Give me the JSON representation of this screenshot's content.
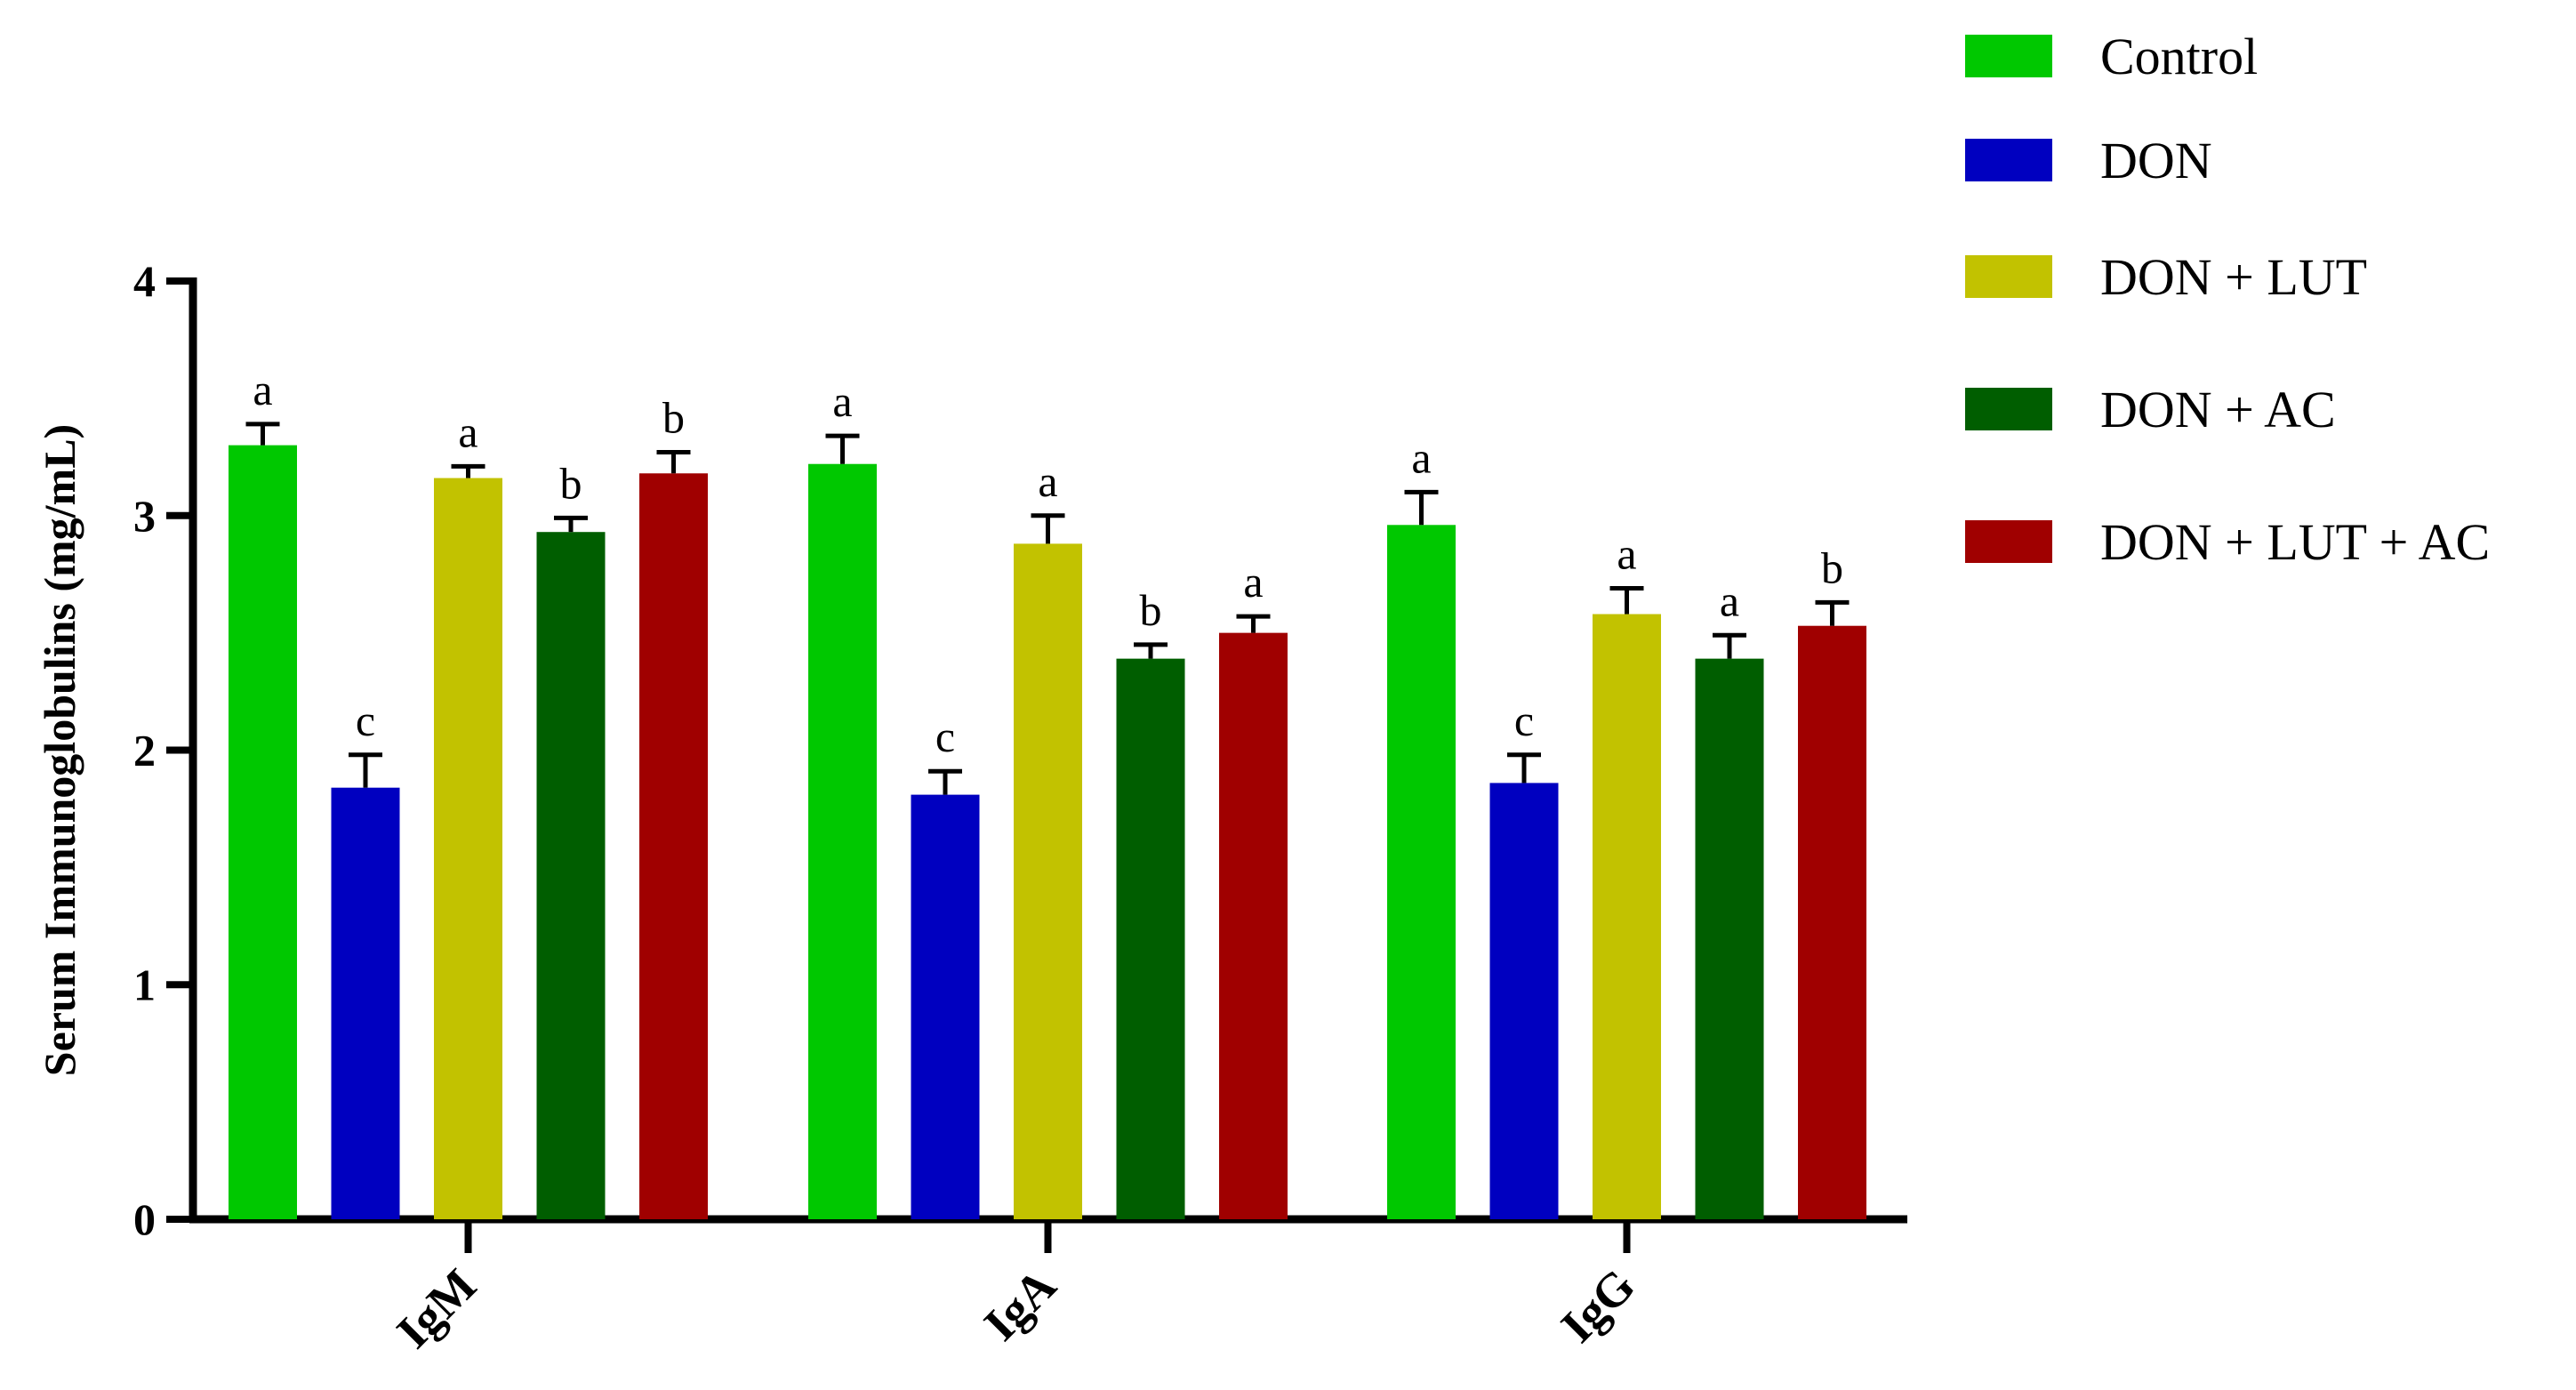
{
  "chart_data": {
    "type": "bar",
    "ylabel": "Serum Immunoglobulins (mg/mL)",
    "xlabel": "",
    "ylim": [
      0,
      4
    ],
    "yticks": [
      0,
      1,
      2,
      3,
      4
    ],
    "grid": false,
    "legend_position": "top-right",
    "categories": [
      "IgM",
      "IgA",
      "IgG"
    ],
    "series": [
      {
        "name": "Control",
        "color": "#00C800",
        "values": [
          3.3,
          3.22,
          2.96
        ],
        "errors": [
          0.09,
          0.12,
          0.14
        ],
        "labels": [
          "a",
          "a",
          "a"
        ]
      },
      {
        "name": "DON",
        "color": "#0000C0",
        "values": [
          1.84,
          1.81,
          1.86
        ],
        "errors": [
          0.14,
          0.1,
          0.12
        ],
        "labels": [
          "c",
          "c",
          "c"
        ]
      },
      {
        "name": "DON + LUT",
        "color": "#C2C200",
        "values": [
          3.16,
          2.88,
          2.58
        ],
        "errors": [
          0.05,
          0.12,
          0.11
        ],
        "labels": [
          "a",
          "a",
          "a"
        ]
      },
      {
        "name": "DON + AC",
        "color": "#005E00",
        "values": [
          2.93,
          2.39,
          2.39
        ],
        "errors": [
          0.06,
          0.06,
          0.1
        ],
        "labels": [
          "b",
          "b",
          "a"
        ]
      },
      {
        "name": "DON + LUT + AC",
        "color": "#A00000",
        "values": [
          3.18,
          2.5,
          2.53
        ],
        "errors": [
          0.09,
          0.07,
          0.1
        ],
        "labels": [
          "b",
          "a",
          "b"
        ]
      }
    ]
  }
}
